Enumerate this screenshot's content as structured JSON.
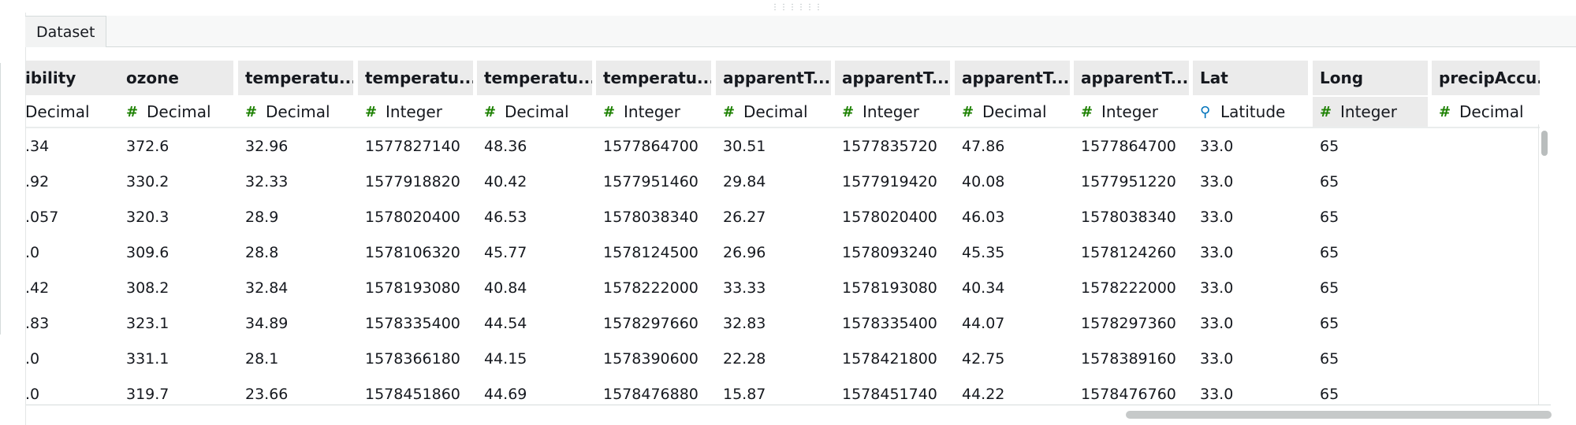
{
  "tabs": [
    {
      "label": "Dataset"
    }
  ],
  "drag_handle": {
    "glyph": "⋮⋮⋮⋮⋮⋮"
  },
  "columns": [
    {
      "header": "ibility",
      "type": "Decimal",
      "icon": "number-icon",
      "type_glyph": ""
    },
    {
      "header": "ozone",
      "type": "Decimal",
      "icon": "number-icon",
      "type_glyph": "#"
    },
    {
      "header": "temperatu...",
      "type": "Decimal",
      "icon": "number-icon",
      "type_glyph": "#"
    },
    {
      "header": "temperatu...",
      "type": "Integer",
      "icon": "number-icon",
      "type_glyph": "#"
    },
    {
      "header": "temperatu...",
      "type": "Decimal",
      "icon": "number-icon",
      "type_glyph": "#"
    },
    {
      "header": "temperatu...",
      "type": "Integer",
      "icon": "number-icon",
      "type_glyph": "#"
    },
    {
      "header": "apparentT...",
      "type": "Decimal",
      "icon": "number-icon",
      "type_glyph": "#"
    },
    {
      "header": "apparentT...",
      "type": "Integer",
      "icon": "number-icon",
      "type_glyph": "#"
    },
    {
      "header": "apparentT...",
      "type": "Decimal",
      "icon": "number-icon",
      "type_glyph": "#"
    },
    {
      "header": "apparentT...",
      "type": "Integer",
      "icon": "number-icon",
      "type_glyph": "#"
    },
    {
      "header": "Lat",
      "type": "Latitude",
      "icon": "location-pin-icon",
      "type_glyph": "⚲"
    },
    {
      "header": "Long",
      "type": "Integer",
      "icon": "number-icon",
      "type_glyph": "#",
      "active": true
    },
    {
      "header": "precipAccu...",
      "type": "Decimal",
      "icon": "number-icon",
      "type_glyph": "#"
    }
  ],
  "rows": [
    [
      ".34",
      "372.6",
      "32.96",
      "1577827140",
      "48.36",
      "1577864700",
      "30.51",
      "1577835720",
      "47.86",
      "1577864700",
      "33.0",
      "65",
      ""
    ],
    [
      ".92",
      "330.2",
      "32.33",
      "1577918820",
      "40.42",
      "1577951460",
      "29.84",
      "1577919420",
      "40.08",
      "1577951220",
      "33.0",
      "65",
      ""
    ],
    [
      ".057",
      "320.3",
      "28.9",
      "1578020400",
      "46.53",
      "1578038340",
      "26.27",
      "1578020400",
      "46.03",
      "1578038340",
      "33.0",
      "65",
      ""
    ],
    [
      ".0",
      "309.6",
      "28.8",
      "1578106320",
      "45.77",
      "1578124500",
      "26.96",
      "1578093240",
      "45.35",
      "1578124260",
      "33.0",
      "65",
      ""
    ],
    [
      ".42",
      "308.2",
      "32.84",
      "1578193080",
      "40.84",
      "1578222000",
      "33.33",
      "1578193080",
      "40.34",
      "1578222000",
      "33.0",
      "65",
      ""
    ],
    [
      ".83",
      "323.1",
      "34.89",
      "1578335400",
      "44.54",
      "1578297660",
      "32.83",
      "1578335400",
      "44.07",
      "1578297360",
      "33.0",
      "65",
      ""
    ],
    [
      ".0",
      "331.1",
      "28.1",
      "1578366180",
      "44.15",
      "1578390600",
      "22.28",
      "1578421800",
      "42.75",
      "1578389160",
      "33.0",
      "65",
      ""
    ],
    [
      ".0",
      "319.7",
      "23.66",
      "1578451860",
      "44.69",
      "1578476880",
      "15.87",
      "1578451740",
      "44.22",
      "1578476760",
      "33.0",
      "65",
      ""
    ]
  ],
  "colors": {
    "number_icon": "#1d8102",
    "geo_icon": "#0073bb",
    "header_bg": "#ebebeb",
    "text": "#16191f"
  }
}
